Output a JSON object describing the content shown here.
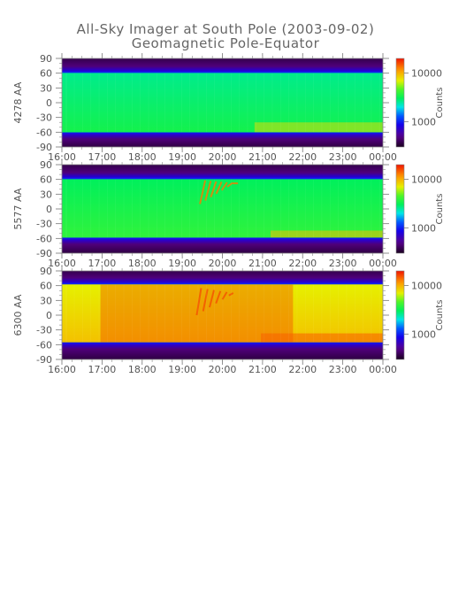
{
  "chart_data": {
    "type": "heatmap",
    "title": "All-Sky Imager at South Pole (2003-09-02)",
    "subtitle": "Geomagnetic Pole-Equator",
    "x_tick_labels": [
      "16:00",
      "17:00",
      "18:00",
      "19:00",
      "20:00",
      "21:00",
      "22:00",
      "23:00",
      "00:00"
    ],
    "y_tick_labels": [
      "90",
      "60",
      "30",
      "0",
      "-30",
      "-60",
      "-90"
    ],
    "ylim": [
      -90,
      90
    ],
    "colorbar": {
      "label": "Counts",
      "scale": "log",
      "tick_labels": [
        "10000",
        "1000"
      ],
      "range": [
        300,
        20000
      ]
    },
    "panels": [
      {
        "name": "4278 AA",
        "upper_edge_deg": 60,
        "lower_edge_deg": -60,
        "field_counts": 2600,
        "notes": "green field, brighter toward lower edge after 22:00"
      },
      {
        "name": "5577 AA",
        "upper_edge_deg": 60,
        "lower_edge_deg": -58,
        "field_counts": 3000,
        "notes": "auroral arcs near 19:30-20:15, enhancement near lower edge after 21:30"
      },
      {
        "name": "6300 AA",
        "upper_edge_deg": 62,
        "lower_edge_deg": -55,
        "field_counts": 7000,
        "notes": "strong emission 17:00-22:30, bright band near lower edge"
      }
    ]
  }
}
